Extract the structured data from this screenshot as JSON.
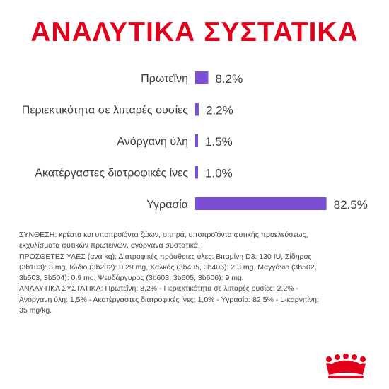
{
  "heading": "ΑΝΑΛΥΤΙΚΑ ΣΥΣΤΑΤΙΚΑ",
  "colors": {
    "accent": "#e2001a",
    "bar": "#7b4fd3",
    "text": "#3a3a3a"
  },
  "chart_data": {
    "type": "bar",
    "orientation": "horizontal",
    "categories": [
      "Πρωτεΐνη",
      "Περιεκτικότητα σε λιπαρές ουσίες",
      "Ανόργανη ύλη",
      "Ακατέργαστες διατροφικές ίνες",
      "Υγρασία"
    ],
    "values": [
      8.2,
      2.2,
      1.5,
      1.0,
      82.5
    ],
    "value_labels": [
      "8.2%",
      "2.2%",
      "1.5%",
      "1.0%",
      "82.5%"
    ],
    "grid": false,
    "legend": false
  },
  "composition": [
    "ΣΥΝΘΕΣΗ: κρέατα και υποπροϊόντα ζώων, σιτηρά, υποπροϊόντα φυτικής προελεύσεως,",
    "εκχυλίσματα φυτικών πρωτεϊνών, ανόργανα συστατικά.",
    "ΠΡΟΣΘΕΤΕΣ ΥΛΕΣ (ανά kg): Διατροφικές πρόσθετες ύλες: Βιταμίνη D3: 130 IU, Σίδηρος",
    "(3b103): 3 mg, Ιώδιο (3b202): 0,29 mg, Χαλκός (3b405, 3b406): 2,3 mg, Μαγγάνιο (3b502,",
    "3b503, 3b504): 0,9 mg, Ψευδάργυρος (3b603, 3b605, 3b606): 9 mg.",
    "ΑΝΑΛΥΤΙΚΑ ΣΥΣΤΑΤΙΚΑ: Πρωτεΐνη: 8,2% - Περιεκτικότητα σε λιπαρές ουσίες: 2,2% -",
    "Ανόργανη ύλη: 1,5% - Ακατέργαστες διατροφικές ίνες: 1,0% - Υγρασία: 82,5% - L-καρνιτίνη:",
    "35 mg/kg."
  ],
  "logo": {
    "icon": "crown-icon"
  }
}
